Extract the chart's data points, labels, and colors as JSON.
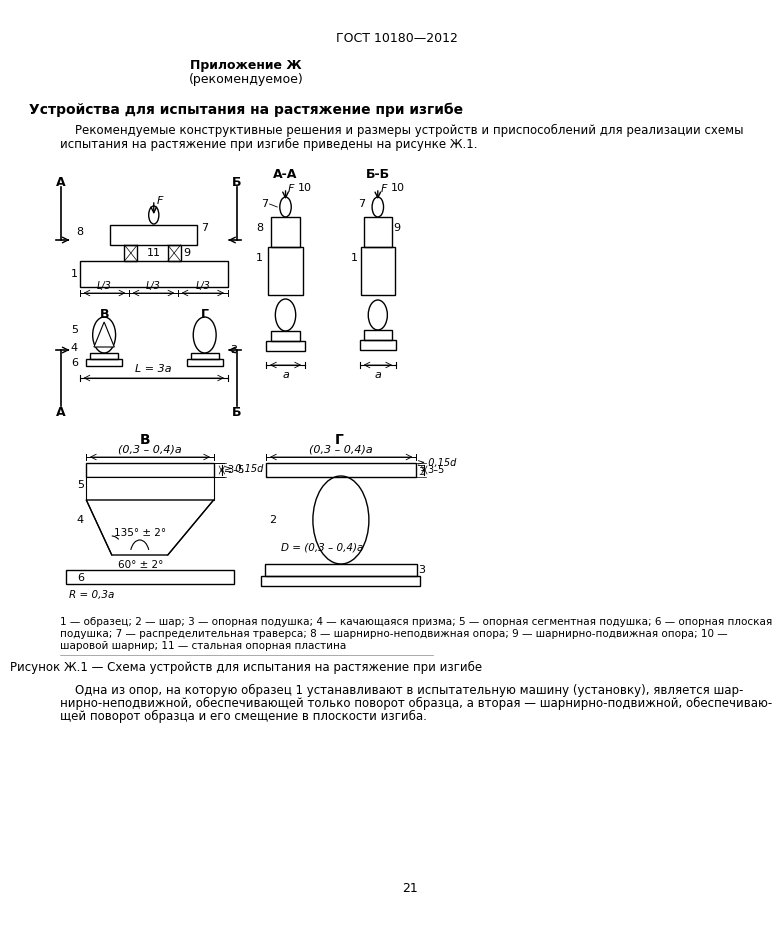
{
  "page_title": "ГОСТ 10180—2012",
  "appendix_title": "Приложение Ж",
  "appendix_subtitle": "(рекомендуемое)",
  "section_title": "Устройства для испытания на растяжение при изгибе",
  "intro_line1": "    Рекомендуемые конструктивные решения и размеры устройств и приспособлений для реализации схемы",
  "intro_line2": "испытания на растяжение при изгибе приведены на рисунке Ж.1.",
  "figure_caption": "Рисунок Ж.1 — Схема устройств для испытания на растяжение при изгибе",
  "legend_line1": "1 — образец; 2 — шар; 3 — опорная подушка; 4 — качающаяся призма; 5 — опорная сегментная подушка; 6 — опорная плоская",
  "legend_line2": "подушка; 7 — распределительная траверса; 8 — шарнирно-неподвижная опора; 9 — шарнирно-подвижная опора; 10 —",
  "legend_line3": "шаровой шарнир; 11 — стальная опорная пластина",
  "bottom_line1": "    Одна из опор, на которую образец 1 устанавливают в испытательную машину (установку), является шар-",
  "bottom_line2": "нирно-неподвижной, обеспечивающей только поворот образца, а вторая — шарнирно-подвижной, обеспечиваю-",
  "bottom_line3": "щей поворот образца и его смещение в плоскости изгиба.",
  "page_number": "21",
  "bg_color": "#ffffff",
  "text_color": "#000000",
  "line_color": "#000000"
}
